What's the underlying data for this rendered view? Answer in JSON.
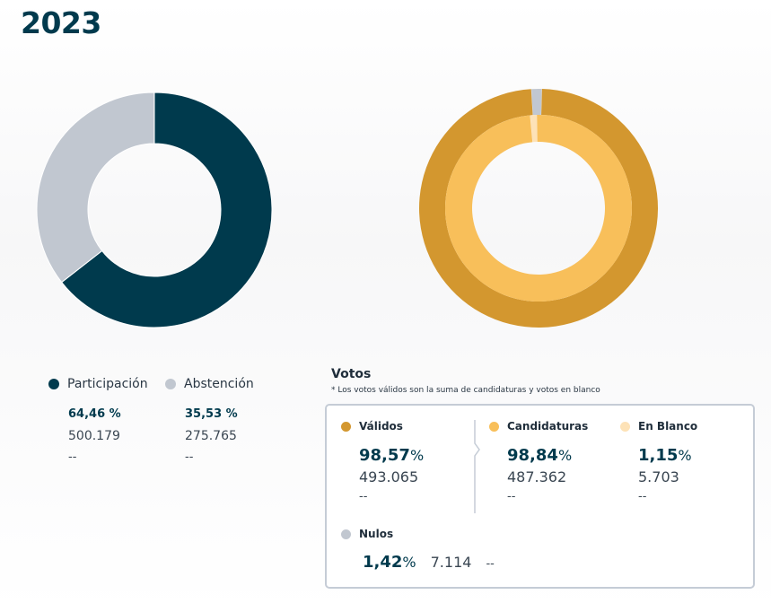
{
  "year": "2023",
  "chart_data": [
    {
      "type": "pie",
      "variant": "donut",
      "title": "Participación",
      "slices": [
        {
          "label": "Participación",
          "value": 64.46,
          "color": "#003a4d"
        },
        {
          "label": "Abstención",
          "value": 35.53,
          "color": "#c1c7d0"
        }
      ]
    },
    {
      "type": "pie",
      "variant": "nested-donut",
      "title": "Votos",
      "outer": [
        {
          "label": "Válidos",
          "value": 98.57,
          "color": "#d3972f"
        },
        {
          "label": "Nulos",
          "value": 1.42,
          "color": "#c1c7d0"
        }
      ],
      "inner": [
        {
          "label": "Candidaturas",
          "value": 98.84,
          "color": "#f8bf5a"
        },
        {
          "label": "En Blanco",
          "value": 1.15,
          "color": "#fde2b7"
        }
      ]
    }
  ],
  "participation": {
    "items": [
      {
        "label": "Participación",
        "pct": "64,46 %",
        "count": "500.179",
        "dash": "--",
        "color": "#003a4d"
      },
      {
        "label": "Abstención",
        "pct": "35,53 %",
        "count": "275.765",
        "dash": "--",
        "color": "#c1c7d0"
      }
    ]
  },
  "votos": {
    "title": "Votos",
    "note": "* Los votos válidos son la suma de candidaturas y votos en blanco",
    "validos": {
      "label": "Válidos",
      "pct": "98,57",
      "unit": "%",
      "count": "493.065",
      "dash": "--",
      "color": "#d3972f"
    },
    "candidaturas": {
      "label": "Candidaturas",
      "pct": "98,84",
      "unit": "%",
      "count": "487.362",
      "dash": "--",
      "color": "#f8bf5a"
    },
    "en_blanco": {
      "label": "En Blanco",
      "pct": "1,15",
      "unit": "%",
      "count": "5.703",
      "dash": "--",
      "color": "#fde2b7"
    },
    "nulos": {
      "label": "Nulos",
      "pct": "1,42",
      "unit": "%",
      "count": "7.114",
      "dash": "--",
      "color": "#c1c7d0"
    }
  }
}
